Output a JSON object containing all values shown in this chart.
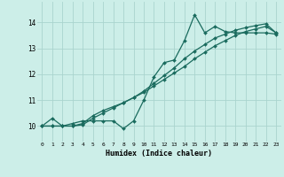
{
  "title": "",
  "xlabel": "Humidex (Indice chaleur)",
  "bg_color": "#cceee8",
  "grid_color": "#aad4ce",
  "line_color": "#1a6b5e",
  "marker": "D",
  "markersize": 2.0,
  "linewidth": 0.9,
  "xlim": [
    -0.5,
    23.5
  ],
  "ylim": [
    9.4,
    14.8
  ],
  "xticks": [
    0,
    1,
    2,
    3,
    4,
    5,
    6,
    7,
    8,
    9,
    10,
    11,
    12,
    13,
    14,
    15,
    16,
    17,
    18,
    19,
    20,
    21,
    22,
    23
  ],
  "yticks": [
    10,
    11,
    12,
    13,
    14
  ],
  "series": [
    [
      10.0,
      10.3,
      10.0,
      10.1,
      10.2,
      10.2,
      10.2,
      10.2,
      9.9,
      10.2,
      11.0,
      11.9,
      12.45,
      12.55,
      13.3,
      14.3,
      13.6,
      13.85,
      13.65,
      13.6,
      13.6,
      13.6,
      13.6,
      13.55
    ],
    [
      10.0,
      10.0,
      10.0,
      10.0,
      10.05,
      10.3,
      10.5,
      10.7,
      10.9,
      11.1,
      11.3,
      11.55,
      11.8,
      12.05,
      12.3,
      12.6,
      12.85,
      13.1,
      13.3,
      13.5,
      13.65,
      13.75,
      13.85,
      13.6
    ],
    [
      10.0,
      10.0,
      10.0,
      10.0,
      10.1,
      10.4,
      10.6,
      10.75,
      10.9,
      11.1,
      11.35,
      11.65,
      11.95,
      12.25,
      12.6,
      12.9,
      13.15,
      13.4,
      13.55,
      13.7,
      13.8,
      13.88,
      13.95,
      13.6
    ]
  ]
}
